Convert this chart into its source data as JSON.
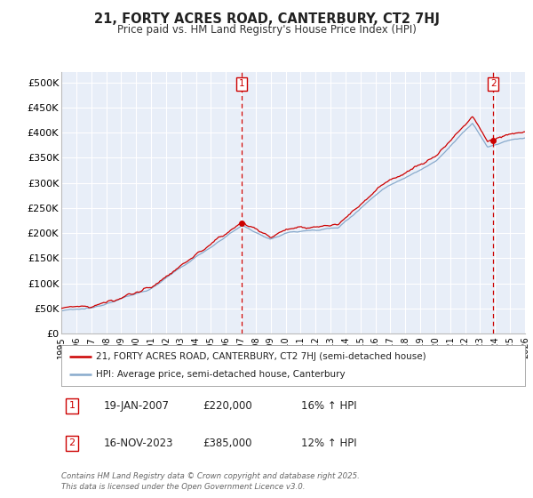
{
  "title": "21, FORTY ACRES ROAD, CANTERBURY, CT2 7HJ",
  "subtitle": "Price paid vs. HM Land Registry's House Price Index (HPI)",
  "ylim": [
    0,
    520000
  ],
  "yticks": [
    0,
    50000,
    100000,
    150000,
    200000,
    250000,
    300000,
    350000,
    400000,
    450000,
    500000
  ],
  "ytick_labels": [
    "£0",
    "£50K",
    "£100K",
    "£150K",
    "£200K",
    "£250K",
    "£300K",
    "£350K",
    "£400K",
    "£450K",
    "£500K"
  ],
  "sale_color": "#cc0000",
  "hpi_color": "#88aacc",
  "vline_color": "#cc0000",
  "legend_sale_label": "21, FORTY ACRES ROAD, CANTERBURY, CT2 7HJ (semi-detached house)",
  "legend_hpi_label": "HPI: Average price, semi-detached house, Canterbury",
  "annotation1_date": "19-JAN-2007",
  "annotation1_price": "£220,000",
  "annotation1_hpi": "16% ↑ HPI",
  "annotation2_date": "16-NOV-2023",
  "annotation2_price": "£385,000",
  "annotation2_hpi": "12% ↑ HPI",
  "footnote": "Contains HM Land Registry data © Crown copyright and database right 2025.\nThis data is licensed under the Open Government Licence v3.0.",
  "background_color": "#ffffff",
  "plot_background_color": "#e8eef8",
  "grid_color": "#ffffff",
  "x_start_year": 1995,
  "x_end_year": 2026,
  "sale1_year": 2007.05,
  "sale1_price": 220000,
  "sale2_year": 2023.88,
  "sale2_price": 385000
}
